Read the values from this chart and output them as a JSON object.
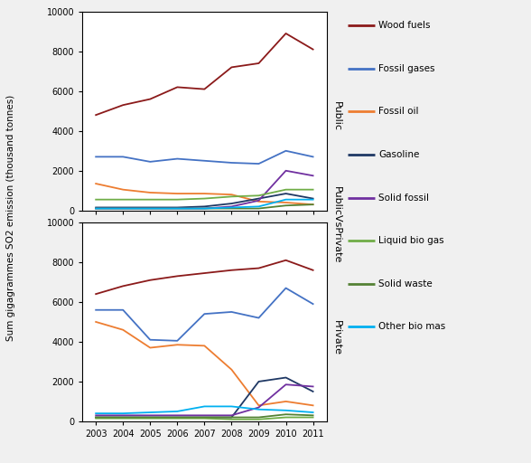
{
  "years": [
    2003,
    2004,
    2005,
    2006,
    2007,
    2008,
    2009,
    2010,
    2011
  ],
  "public": {
    "Wood fuels": [
      4800,
      5300,
      5600,
      6200,
      6100,
      7200,
      7400,
      8900,
      8100
    ],
    "Fossil gases": [
      2700,
      2700,
      2450,
      2600,
      2500,
      2400,
      2350,
      3000,
      2700
    ],
    "Fossil oil": [
      1350,
      1050,
      900,
      850,
      850,
      800,
      450,
      400,
      300
    ],
    "Gasoline": [
      150,
      150,
      150,
      150,
      200,
      350,
      600,
      850,
      600
    ],
    "Solid fossil": [
      100,
      100,
      100,
      100,
      100,
      200,
      500,
      2000,
      1750
    ],
    "Liquid bio gas": [
      550,
      550,
      550,
      550,
      600,
      700,
      750,
      1050,
      1050
    ],
    "Solid waste": [
      100,
      100,
      100,
      100,
      100,
      100,
      100,
      250,
      300
    ],
    "Other bio mas": [
      100,
      100,
      100,
      100,
      100,
      150,
      200,
      550,
      550
    ]
  },
  "private": {
    "Wood fuels": [
      6400,
      6800,
      7100,
      7300,
      7450,
      7600,
      7700,
      8100,
      7600
    ],
    "Fossil gases": [
      5600,
      5600,
      4100,
      4050,
      5400,
      5500,
      5200,
      6700,
      5900
    ],
    "Fossil oil": [
      5000,
      4600,
      3700,
      3850,
      3800,
      2600,
      800,
      1000,
      800
    ],
    "Gasoline": [
      200,
      200,
      200,
      200,
      200,
      200,
      2000,
      2200,
      1500
    ],
    "Solid fossil": [
      300,
      300,
      300,
      300,
      300,
      300,
      700,
      1850,
      1750
    ],
    "Liquid bio gas": [
      150,
      150,
      150,
      150,
      150,
      100,
      100,
      200,
      200
    ],
    "Solid waste": [
      200,
      200,
      200,
      200,
      200,
      200,
      200,
      350,
      300
    ],
    "Other bio mas": [
      400,
      400,
      450,
      500,
      750,
      750,
      600,
      550,
      450
    ]
  },
  "colors": {
    "Wood fuels": "#8B1A1A",
    "Fossil gases": "#4472C4",
    "Fossil oil": "#ED7D31",
    "Gasoline": "#1F3864",
    "Solid fossil": "#7030A0",
    "Liquid bio gas": "#70AD47",
    "Solid waste": "#548235",
    "Other bio mas": "#00B0F0"
  },
  "ylabel": "Sum gigagrammes SO2 emission (thousand tonnes)",
  "ylim": [
    0,
    10000
  ],
  "yticks": [
    0,
    2000,
    4000,
    6000,
    8000,
    10000
  ],
  "bg_color": "#F0F0F0",
  "series_order": [
    "Wood fuels",
    "Fossil gases",
    "Fossil oil",
    "Gasoline",
    "Solid fossil",
    "Liquid bio gas",
    "Solid waste",
    "Other bio mas"
  ],
  "right_labels": [
    "Public",
    "PublicVsPrivate",
    "Private"
  ],
  "figsize": [
    5.88,
    5.12
  ],
  "dpi": 100
}
